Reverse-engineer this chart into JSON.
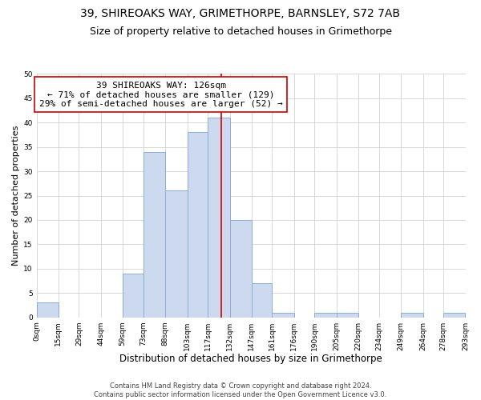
{
  "title": "39, SHIREOAKS WAY, GRIMETHORPE, BARNSLEY, S72 7AB",
  "subtitle": "Size of property relative to detached houses in Grimethorpe",
  "xlabel": "Distribution of detached houses by size in Grimethorpe",
  "ylabel": "Number of detached properties",
  "bin_edges": [
    0,
    15,
    29,
    44,
    59,
    73,
    88,
    103,
    117,
    132,
    147,
    161,
    176,
    190,
    205,
    220,
    234,
    249,
    264,
    278,
    293
  ],
  "bin_counts": [
    3,
    0,
    0,
    0,
    9,
    34,
    26,
    38,
    41,
    20,
    7,
    1,
    0,
    1,
    1,
    0,
    0,
    1,
    0,
    1
  ],
  "tick_labels": [
    "0sqm",
    "15sqm",
    "29sqm",
    "44sqm",
    "59sqm",
    "73sqm",
    "88sqm",
    "103sqm",
    "117sqm",
    "132sqm",
    "147sqm",
    "161sqm",
    "176sqm",
    "190sqm",
    "205sqm",
    "220sqm",
    "234sqm",
    "249sqm",
    "264sqm",
    "278sqm",
    "293sqm"
  ],
  "bar_color": "#ccd9ee",
  "bar_edge_color": "#8aaed4",
  "property_line_x": 126,
  "property_line_color": "#cc0000",
  "annotation_box_text": "39 SHIREOAKS WAY: 126sqm\n← 71% of detached houses are smaller (129)\n29% of semi-detached houses are larger (52) →",
  "annotation_box_color": "#ffffff",
  "annotation_box_edge_color": "#cc0000",
  "ylim": [
    0,
    50
  ],
  "yticks": [
    0,
    5,
    10,
    15,
    20,
    25,
    30,
    35,
    40,
    45,
    50
  ],
  "grid_color": "#d8d8d8",
  "background_color": "#ffffff",
  "footer_text": "Contains HM Land Registry data © Crown copyright and database right 2024.\nContains public sector information licensed under the Open Government Licence v3.0.",
  "title_fontsize": 10,
  "subtitle_fontsize": 9,
  "xlabel_fontsize": 8.5,
  "ylabel_fontsize": 8,
  "tick_fontsize": 6.5,
  "annotation_fontsize": 8,
  "footer_fontsize": 6
}
